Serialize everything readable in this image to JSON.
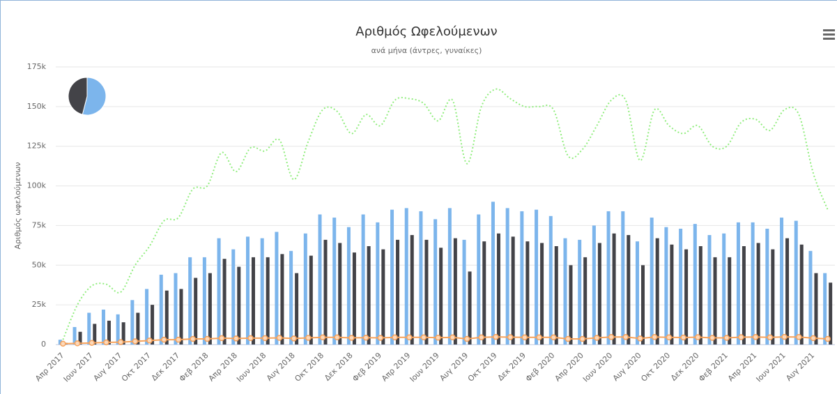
{
  "chart_data": [
    {
      "type": "combo",
      "title": "Αριθμός Ωφελούμενων",
      "subtitle": "ανά μήνα (άντρες, γυναίκες)",
      "y_axis_label": "Αριθμός ωφελούμενων",
      "categories": [
        "Απρ 2017",
        null,
        "Ιουν 2017",
        null,
        "Αυγ 2017",
        null,
        "Οκτ 2017",
        null,
        "Δεκ 2017",
        null,
        "Φεβ 2018",
        null,
        "Απρ 2018",
        null,
        "Ιουν 2018",
        null,
        "Αυγ 2018",
        null,
        "Οκτ 2018",
        null,
        "Δεκ 2018",
        null,
        "Φεβ 2019",
        null,
        "Απρ 2019",
        null,
        "Ιουν 2019",
        null,
        "Αυγ 2019",
        null,
        "Οκτ 2019",
        null,
        "Δεκ 2019",
        null,
        "Φεβ 2020",
        null,
        "Απρ 2020",
        null,
        "Ιουν 2020",
        null,
        "Αυγ 2020",
        null,
        "Οκτ 2020",
        null,
        "Δεκ 2020",
        null,
        "Φεβ 2021",
        null,
        "Απρ 2021",
        null,
        "Ιουν 2021",
        null,
        "Αυγ 2021",
        null
      ],
      "ylim": [
        0,
        175000
      ],
      "yticks": [
        0,
        {
          "value": 25000,
          "label": "25k"
        },
        {
          "value": 50000,
          "label": "50k"
        },
        {
          "value": 75000,
          "label": "75k"
        },
        {
          "value": 100000,
          "label": "100k"
        },
        {
          "value": 125000,
          "label": "125k"
        },
        {
          "value": 150000,
          "label": "150k"
        },
        {
          "value": 175000,
          "label": "175k"
        }
      ],
      "grid": true,
      "series": [
        {
          "type": "bar",
          "color": "#7cb5ec",
          "values": [
            3000,
            11000,
            20000,
            22000,
            19000,
            28000,
            35000,
            44000,
            45000,
            55000,
            55000,
            67000,
            60000,
            68000,
            67000,
            71000,
            59000,
            70000,
            82000,
            80000,
            74000,
            82000,
            77000,
            85000,
            86000,
            84000,
            79000,
            86000,
            66000,
            82000,
            90000,
            86000,
            84000,
            85000,
            81000,
            67000,
            66000,
            75000,
            84000,
            84000,
            65000,
            80000,
            74000,
            73000,
            76000,
            69000,
            70000,
            77000,
            77000,
            73000,
            80000,
            78000,
            59000,
            45000
          ]
        },
        {
          "type": "bar",
          "color": "#434348",
          "values": [
            1000,
            8000,
            13000,
            15000,
            14000,
            20000,
            25000,
            34000,
            35000,
            42000,
            45000,
            54000,
            49000,
            55000,
            55000,
            57000,
            45000,
            56000,
            66000,
            64000,
            58000,
            62000,
            60000,
            66000,
            69000,
            66000,
            61000,
            67000,
            46000,
            65000,
            70000,
            68000,
            65000,
            64000,
            62000,
            50000,
            55000,
            64000,
            70000,
            69000,
            50000,
            67000,
            63000,
            60000,
            62000,
            55000,
            55000,
            62000,
            64000,
            60000,
            67000,
            63000,
            45000,
            39000
          ]
        },
        {
          "type": "spline",
          "color": "#90ed7d",
          "values": [
            3000,
            25000,
            37000,
            38000,
            33000,
            50000,
            62000,
            78000,
            80000,
            98000,
            100000,
            121000,
            109000,
            124000,
            122000,
            129000,
            104000,
            128000,
            148000,
            147000,
            133000,
            145000,
            138000,
            154000,
            155000,
            152000,
            141000,
            154000,
            114000,
            150000,
            161000,
            155000,
            150000,
            150000,
            148000,
            119000,
            123000,
            138000,
            154000,
            154000,
            116000,
            148000,
            138000,
            133000,
            138000,
            125000,
            125000,
            140000,
            142000,
            135000,
            148000,
            145000,
            108000,
            85000
          ]
        },
        {
          "type": "line",
          "color": "#f7a35c",
          "values": [
            500,
            700,
            1000,
            1300,
            1500,
            2000,
            2500,
            3000,
            3000,
            3500,
            3500,
            4000,
            3800,
            4000,
            4000,
            4200,
            3800,
            4200,
            4500,
            4500,
            4200,
            4300,
            4200,
            4500,
            4500,
            4500,
            4300,
            4500,
            3500,
            4500,
            4800,
            4600,
            4500,
            4500,
            4500,
            3500,
            3500,
            4200,
            4700,
            4700,
            3800,
            4700,
            4500,
            4400,
            4600,
            4200,
            4200,
            4600,
            4700,
            4500,
            4800,
            4700,
            4000,
            3500
          ]
        }
      ]
    },
    {
      "type": "pie",
      "values": [
        54,
        46
      ],
      "colors": [
        "#7cb5ec",
        "#434348"
      ]
    }
  ]
}
